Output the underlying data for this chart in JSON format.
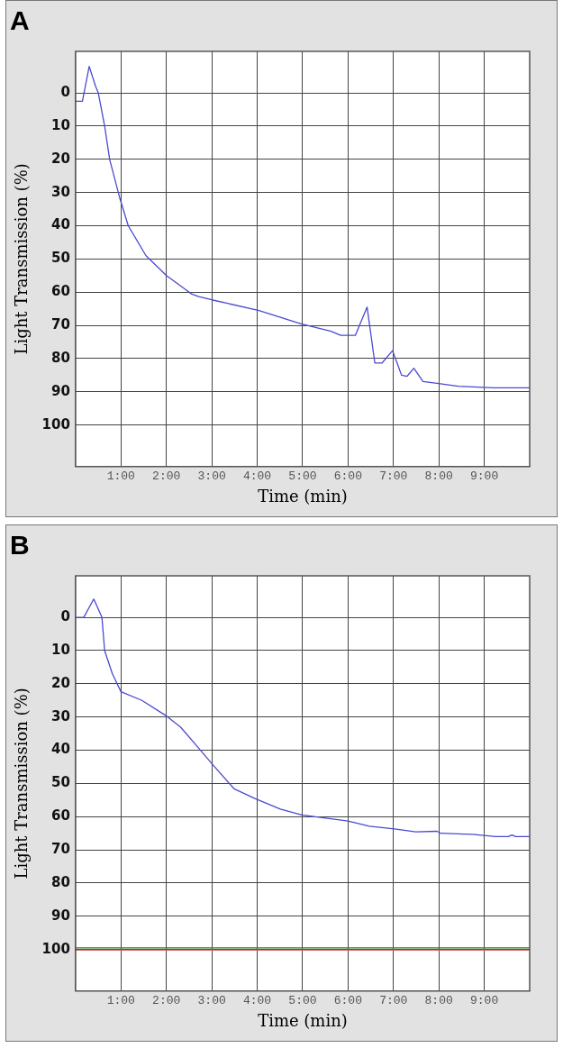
{
  "chart_data": [
    {
      "type": "line",
      "title": "A",
      "xlabel": "Time (min)",
      "ylabel": "Light Transmission (%)",
      "xlim": [
        0,
        10
      ],
      "ylim": [
        112.5,
        -12.5
      ],
      "xticks": [
        {
          "value": 1,
          "label": "1:00"
        },
        {
          "value": 2,
          "label": "2:00"
        },
        {
          "value": 3,
          "label": "3:00"
        },
        {
          "value": 4,
          "label": "4:00"
        },
        {
          "value": 5,
          "label": "5:00"
        },
        {
          "value": 6,
          "label": "6:00"
        },
        {
          "value": 7,
          "label": "7:00"
        },
        {
          "value": 8,
          "label": "8:00"
        },
        {
          "value": 9,
          "label": "9:00"
        }
      ],
      "yticks": [
        0,
        10,
        20,
        30,
        40,
        50,
        60,
        70,
        80,
        90,
        100
      ],
      "grid": true,
      "legend": false,
      "series": [
        {
          "color": "#4a4ad0",
          "x": [
            0,
            0.15,
            0.3,
            0.44,
            0.5,
            0.64,
            0.75,
            0.98,
            1.16,
            1.55,
            2.0,
            2.4,
            2.55,
            2.71,
            3.0,
            4.04,
            4.98,
            5.61,
            5.84,
            6.16,
            6.42,
            6.59,
            6.75,
            6.98,
            7.18,
            7.3,
            7.45,
            7.65,
            7.96,
            8.43,
            9.22,
            10
          ],
          "values": [
            2.5,
            2.5,
            -8,
            -2,
            0,
            10,
            20,
            32,
            40,
            49,
            55,
            59,
            60.5,
            61.3,
            62.3,
            65.5,
            69.6,
            71.7,
            73,
            73,
            64.5,
            81.3,
            81.3,
            77.6,
            85,
            85.3,
            82.9,
            86.9,
            87.4,
            88.3,
            88.8,
            88.8
          ]
        }
      ]
    },
    {
      "type": "line",
      "title": "B",
      "xlabel": "Time (min)",
      "ylabel": "Light Transmission (%)",
      "xlim": [
        0,
        10
      ],
      "ylim": [
        112.5,
        -12.5
      ],
      "xticks": [
        {
          "value": 1,
          "label": "1:00"
        },
        {
          "value": 2,
          "label": "2:00"
        },
        {
          "value": 3,
          "label": "3:00"
        },
        {
          "value": 4,
          "label": "4:00"
        },
        {
          "value": 5,
          "label": "5:00"
        },
        {
          "value": 6,
          "label": "6:00"
        },
        {
          "value": 7,
          "label": "7:00"
        },
        {
          "value": 8,
          "label": "8:00"
        },
        {
          "value": 9,
          "label": "9:00"
        }
      ],
      "yticks": [
        0,
        10,
        20,
        30,
        40,
        50,
        60,
        70,
        80,
        90,
        100
      ],
      "grid": true,
      "legend": false,
      "series": [
        {
          "color": "#4a4ad0",
          "x": [
            0,
            0.18,
            0.4,
            0.58,
            0.64,
            0.81,
            1.0,
            1.46,
            1.98,
            2.31,
            2.7,
            3.03,
            3.49,
            3.96,
            4.51,
            4.98,
            6.0,
            6.47,
            7.02,
            7.49,
            7.96,
            8.04,
            8.74,
            9.25,
            9.53,
            9.61,
            9.69,
            10
          ],
          "values": [
            0,
            0,
            -5.5,
            0,
            10,
            17,
            22.4,
            25,
            29.5,
            33,
            39.2,
            44.5,
            51.6,
            54.6,
            57.7,
            59.5,
            61.3,
            62.9,
            63.7,
            64.6,
            64.4,
            65,
            65.3,
            66,
            66,
            65.5,
            66,
            66
          ]
        },
        {
          "color": "#1a8a1a",
          "x": [
            0,
            10
          ],
          "values": [
            99.5,
            99.5
          ]
        },
        {
          "color": "#e06060",
          "x": [
            0,
            10
          ],
          "values": [
            100.2,
            100.2
          ]
        }
      ]
    }
  ]
}
